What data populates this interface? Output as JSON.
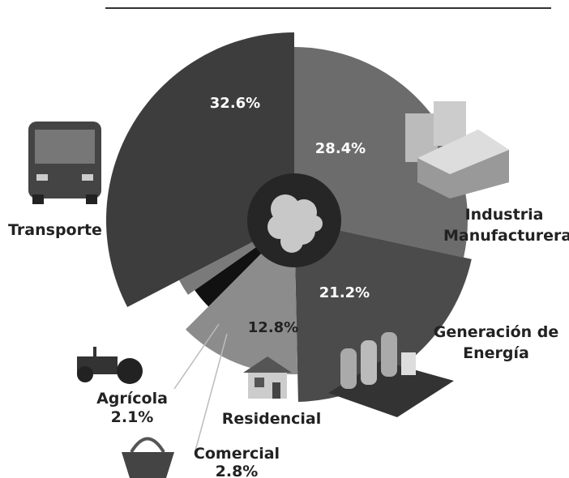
{
  "chart_data": {
    "type": "pie",
    "categories": [
      "Industria Manufacturera",
      "Generación de Energía",
      "Residencial",
      "Comercial",
      "Agrícola",
      "Transporte"
    ],
    "values": [
      28.4,
      21.2,
      12.8,
      2.8,
      2.1,
      32.6
    ],
    "value_labels": [
      "28.4%",
      "21.2%",
      "12.8%",
      "2.8%",
      "2.1%",
      "32.6%"
    ],
    "colors": [
      "#6c6c6c",
      "#4b4b4b",
      "#8c8c8c",
      "#111111",
      "#7a7a7a",
      "#3d3d3d"
    ]
  }
}
